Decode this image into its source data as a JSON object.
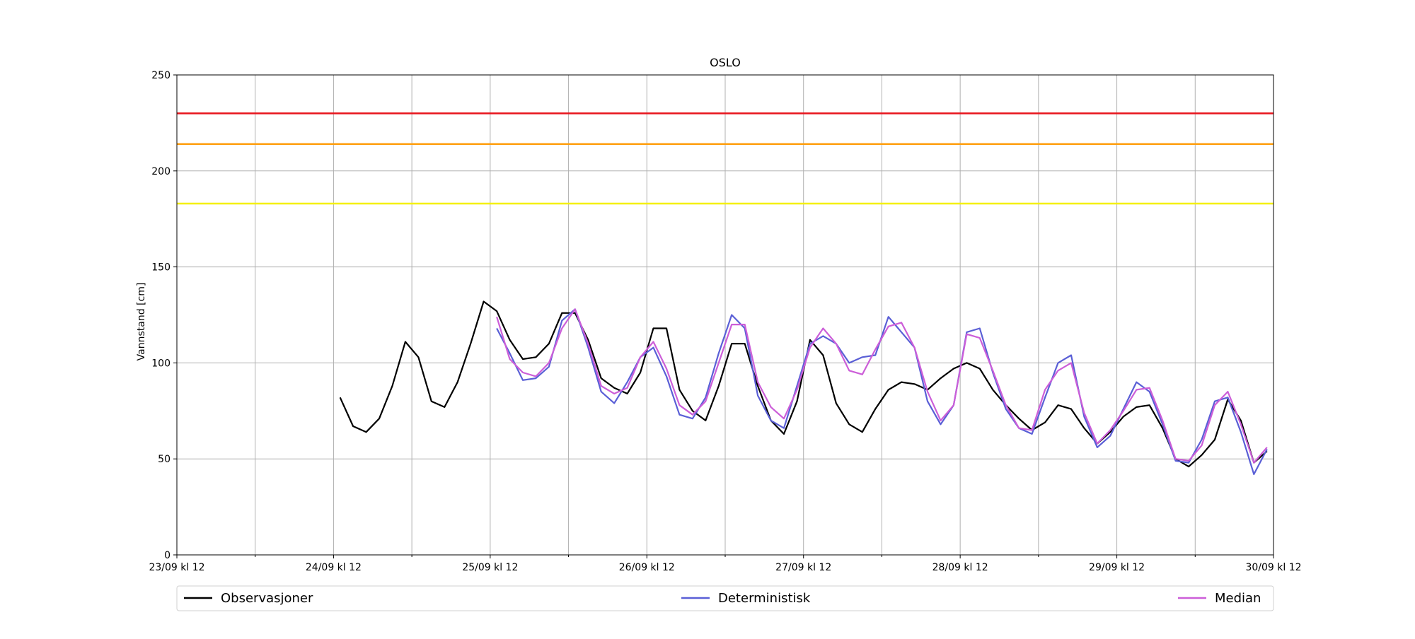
{
  "chart_data": {
    "type": "line",
    "title": "OSLO",
    "y_label": "Vannstand [cm]",
    "x": [
      "24/09 kl 13",
      "24/09 kl 15",
      "24/09 kl 17",
      "24/09 kl 19",
      "24/09 kl 21",
      "24/09 kl 23",
      "25/09 kl 01",
      "25/09 kl 03",
      "25/09 kl 05",
      "25/09 kl 07",
      "25/09 kl 09",
      "25/09 kl 11",
      "25/09 kl 13",
      "25/09 kl 15",
      "25/09 kl 17",
      "25/09 kl 19",
      "25/09 kl 21",
      "25/09 kl 23",
      "26/09 kl 01",
      "26/09 kl 03",
      "26/09 kl 05",
      "26/09 kl 07",
      "26/09 kl 09",
      "26/09 kl 11",
      "26/09 kl 13",
      "26/09 kl 15",
      "26/09 kl 17",
      "26/09 kl 19",
      "26/09 kl 21",
      "26/09 kl 23",
      "27/09 kl 01",
      "27/09 kl 03",
      "27/09 kl 05",
      "27/09 kl 07",
      "27/09 kl 09",
      "27/09 kl 11",
      "27/09 kl 13",
      "27/09 kl 15",
      "27/09 kl 17",
      "27/09 kl 19",
      "27/09 kl 21",
      "27/09 kl 23",
      "28/09 kl 01",
      "28/09 kl 03",
      "28/09 kl 05",
      "28/09 kl 07",
      "28/09 kl 09",
      "28/09 kl 11",
      "28/09 kl 13",
      "28/09 kl 15",
      "28/09 kl 17",
      "28/09 kl 19",
      "28/09 kl 21",
      "28/09 kl 23",
      "29/09 kl 01",
      "29/09 kl 03",
      "29/09 kl 05",
      "29/09 kl 07",
      "29/09 kl 09",
      "29/09 kl 11",
      "29/09 kl 13",
      "29/09 kl 15",
      "29/09 kl 17",
      "29/09 kl 19",
      "29/09 kl 21",
      "29/09 kl 23",
      "30/09 kl 01",
      "30/09 kl 03",
      "30/09 kl 05",
      "30/09 kl 07",
      "30/09 kl 09",
      "30/09 kl 11"
    ],
    "series": [
      {
        "name": "Observasjoner",
        "color": "#000000",
        "values": [
          82,
          67,
          64,
          71,
          88,
          111,
          103,
          80,
          77,
          90,
          110,
          132,
          127,
          112,
          102,
          103,
          110,
          126,
          126,
          112,
          92,
          87,
          84,
          95,
          118,
          118,
          86,
          75,
          70,
          88,
          110,
          110,
          88,
          70,
          63,
          80,
          112,
          104,
          79,
          68,
          64,
          76,
          86,
          90,
          89,
          86,
          92,
          97,
          100,
          97,
          86,
          78,
          71,
          65,
          69,
          78,
          76,
          66,
          58,
          64,
          72,
          77,
          78,
          66,
          50,
          46,
          52,
          60,
          81,
          70,
          48,
          54
        ]
      },
      {
        "name": "Deterministisk",
        "color": "#5a5fd6",
        "values": [
          null,
          null,
          null,
          null,
          null,
          null,
          null,
          null,
          null,
          null,
          null,
          null,
          118,
          105,
          91,
          92,
          98,
          122,
          128,
          108,
          85,
          79,
          90,
          103,
          108,
          93,
          73,
          71,
          82,
          105,
          125,
          118,
          83,
          70,
          66,
          88,
          110,
          114,
          110,
          100,
          103,
          104,
          124,
          116,
          108,
          80,
          68,
          78,
          116,
          118,
          95,
          76,
          66,
          63,
          82,
          100,
          104,
          72,
          56,
          62,
          76,
          90,
          85,
          68,
          49,
          48,
          60,
          80,
          82,
          64,
          42,
          55
        ]
      },
      {
        "name": "Median",
        "color": "#cc5ed8",
        "values": [
          null,
          null,
          null,
          null,
          null,
          null,
          null,
          null,
          null,
          null,
          null,
          null,
          124,
          102,
          95,
          93,
          100,
          118,
          128,
          110,
          88,
          84,
          87,
          103,
          111,
          97,
          78,
          73,
          80,
          100,
          120,
          120,
          90,
          77,
          71,
          86,
          108,
          118,
          110,
          96,
          94,
          107,
          119,
          121,
          108,
          85,
          70,
          78,
          115,
          113,
          96,
          78,
          66,
          65,
          86,
          96,
          100,
          74,
          58,
          65,
          75,
          86,
          87,
          70,
          50,
          49,
          57,
          78,
          85,
          68,
          48,
          56
        ]
      }
    ],
    "thresholds": [
      {
        "value": 230,
        "color": "#e8141c"
      },
      {
        "value": 214,
        "color": "#ff9f0f"
      },
      {
        "value": 183,
        "color": "#f4f000"
      }
    ],
    "xlim": [
      "23/09 kl 12",
      "30/09 kl 12"
    ],
    "xticks": [
      "23/09 kl 12",
      "24/09 kl 12",
      "25/09 kl 12",
      "26/09 kl 12",
      "27/09 kl 12",
      "28/09 kl 12",
      "29/09 kl 12",
      "30/09 kl 12"
    ],
    "minor_xticks_between": true,
    "ylim": [
      0,
      250
    ],
    "yticks": [
      0,
      50,
      100,
      150,
      200,
      250
    ],
    "grid": true,
    "legend": "bottom"
  }
}
